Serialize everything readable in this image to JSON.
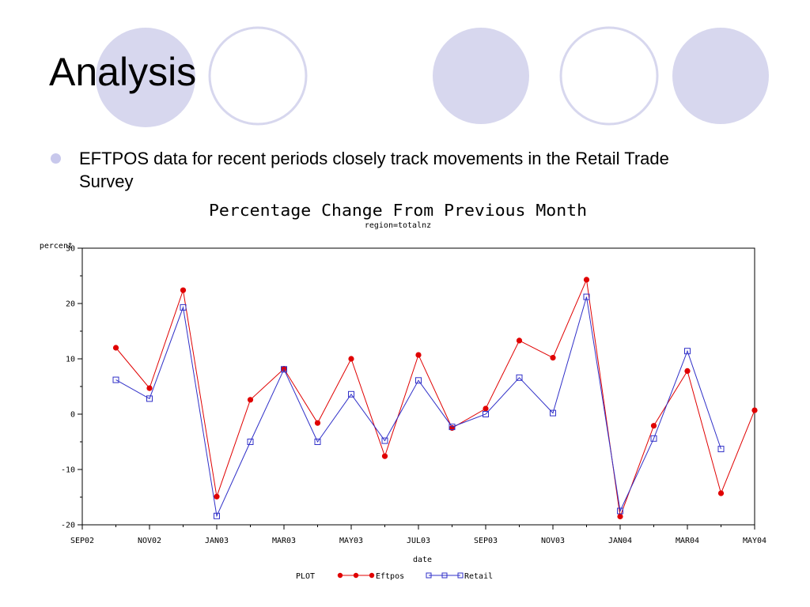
{
  "slide": {
    "title": "Analysis",
    "bullet": "EFTPOS data for recent periods closely track movements in the Retail Trade Survey"
  },
  "colors": {
    "circle_fill": "#d7d7ee",
    "circle_stroke": "#d7d7ee",
    "bullet": "#c8c8ec",
    "eftpos": "#e00000",
    "retail": "#3030c8"
  },
  "chart_data": {
    "type": "line",
    "title": "Percentage Change From Previous Month",
    "subtitle": "region=totalnz",
    "ylabel": "percent",
    "xlabel": "date",
    "ylim": [
      -20,
      30
    ],
    "yticks": [
      -20,
      -10,
      0,
      10,
      20,
      30
    ],
    "xlim": [
      "2002-09",
      "2004-05"
    ],
    "xticks": [
      "SEP02",
      "NOV02",
      "JAN03",
      "MAR03",
      "MAY03",
      "JUL03",
      "SEP03",
      "NOV03",
      "JAN04",
      "MAR04",
      "MAY04"
    ],
    "x": [
      "2002-10",
      "2002-11",
      "2002-12",
      "2003-01",
      "2003-02",
      "2003-03",
      "2003-04",
      "2003-05",
      "2003-06",
      "2003-07",
      "2003-08",
      "2003-09",
      "2003-10",
      "2003-11",
      "2003-12",
      "2004-01",
      "2004-02",
      "2004-03",
      "2004-04",
      "2004-05"
    ],
    "legend": {
      "label": "PLOT",
      "position": "bottom"
    },
    "series": [
      {
        "name": "Eftpos",
        "marker": "dot",
        "values": [
          12.0,
          4.7,
          22.4,
          -14.9,
          2.6,
          8.2,
          -1.6,
          10.0,
          -7.6,
          10.7,
          -2.5,
          1.0,
          13.3,
          10.2,
          24.3,
          -18.5,
          -2.1,
          7.8,
          -14.3,
          0.7
        ]
      },
      {
        "name": "Retail",
        "marker": "square",
        "values": [
          6.2,
          2.8,
          19.3,
          -18.4,
          -5.0,
          8.1,
          -5.0,
          3.6,
          -4.8,
          6.1,
          -2.3,
          0.0,
          6.6,
          0.2,
          21.2,
          -17.5,
          -4.4,
          11.4,
          -6.3,
          null
        ]
      }
    ]
  }
}
